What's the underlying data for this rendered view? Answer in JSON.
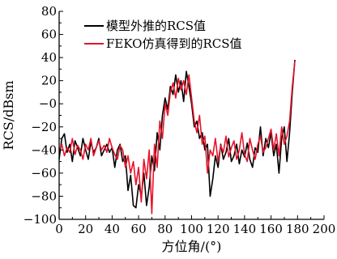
{
  "chart_data": {
    "type": "line",
    "xlabel": "方位角/(°)",
    "ylabel": "RCS/dBsm",
    "xlim": [
      0,
      200
    ],
    "ylim": [
      -100,
      80
    ],
    "xticks": [
      "0",
      "20",
      "40",
      "60",
      "80",
      "100",
      "120",
      "140",
      "160",
      "180",
      "200"
    ],
    "yticks": [
      "80",
      "60",
      "40",
      "20",
      "−0",
      "−20",
      "−40",
      "−60",
      "−80",
      "−100"
    ],
    "grid": false,
    "legend": "top-left",
    "series": [
      {
        "name": "模型外推的RCS值",
        "color": "#000000",
        "x": [
          0,
          2,
          4,
          6,
          8,
          10,
          12,
          14,
          16,
          18,
          20,
          22,
          24,
          26,
          28,
          30,
          32,
          34,
          36,
          38,
          40,
          42,
          44,
          46,
          48,
          50,
          52,
          54,
          56,
          58,
          60,
          62,
          64,
          66,
          68,
          70,
          72,
          74,
          76,
          78,
          80,
          82,
          84,
          86,
          88,
          90,
          92,
          94,
          96,
          98,
          100,
          102,
          104,
          106,
          108,
          110,
          112,
          114,
          116,
          118,
          120,
          122,
          124,
          126,
          128,
          130,
          132,
          134,
          136,
          138,
          140,
          142,
          144,
          146,
          148,
          150,
          152,
          154,
          156,
          158,
          160,
          162,
          164,
          166,
          168,
          170,
          172,
          174,
          176,
          178
        ],
        "values": [
          -48,
          -30,
          -26,
          -42,
          -35,
          -50,
          -32,
          -38,
          -45,
          -30,
          -40,
          -48,
          -33,
          -42,
          -38,
          -30,
          -45,
          -40,
          -35,
          -42,
          -38,
          -55,
          -40,
          -35,
          -50,
          -45,
          -75,
          -62,
          -88,
          -90,
          -70,
          -80,
          -60,
          -88,
          -72,
          -45,
          -58,
          -25,
          -40,
          -10,
          5,
          -5,
          15,
          8,
          25,
          10,
          20,
          2,
          28,
          15,
          0,
          -20,
          -15,
          -30,
          -25,
          -40,
          -35,
          -80,
          -65,
          -45,
          -55,
          -35,
          -48,
          -42,
          -30,
          -50,
          -45,
          -35,
          -52,
          -40,
          -46,
          -34,
          -48,
          -55,
          -38,
          -42,
          -20,
          -45,
          -30,
          -38,
          -25,
          -45,
          -35,
          -60,
          -30,
          -20,
          -50,
          -25,
          10,
          38
        ]
      },
      {
        "name": "FEKO仿真得到的RCS值",
        "color": "#e8132a",
        "x": [
          0,
          2,
          4,
          6,
          8,
          10,
          12,
          14,
          16,
          18,
          20,
          22,
          24,
          26,
          28,
          30,
          32,
          34,
          36,
          38,
          40,
          42,
          44,
          46,
          48,
          50,
          52,
          54,
          56,
          58,
          60,
          62,
          64,
          66,
          68,
          70,
          72,
          74,
          76,
          78,
          80,
          82,
          84,
          86,
          88,
          90,
          92,
          94,
          96,
          98,
          100,
          102,
          104,
          106,
          108,
          110,
          112,
          114,
          116,
          118,
          120,
          122,
          124,
          126,
          128,
          130,
          132,
          134,
          136,
          138,
          140,
          142,
          144,
          146,
          148,
          150,
          152,
          154,
          156,
          158,
          160,
          162,
          164,
          166,
          168,
          170,
          172,
          174,
          176,
          178
        ],
        "values": [
          -40,
          -35,
          -45,
          -38,
          -42,
          -30,
          -44,
          -36,
          -40,
          -48,
          -35,
          -40,
          -30,
          -45,
          -38,
          -32,
          -40,
          -36,
          -42,
          -30,
          -38,
          -44,
          -48,
          -36,
          -40,
          -55,
          -45,
          -60,
          -50,
          -70,
          -55,
          -85,
          -48,
          -65,
          -40,
          -95,
          -35,
          -55,
          -15,
          -30,
          0,
          -10,
          10,
          18,
          5,
          22,
          12,
          20,
          8,
          25,
          5,
          -15,
          -25,
          -10,
          -35,
          -28,
          -60,
          -40,
          -45,
          -30,
          -50,
          -36,
          -42,
          -28,
          -46,
          -38,
          -32,
          -48,
          -40,
          -25,
          -44,
          -50,
          -30,
          -40,
          -48,
          -35,
          -28,
          -42,
          -38,
          -30,
          -22,
          -40,
          -26,
          -45,
          -20,
          -35,
          -28,
          -15,
          15,
          37
        ]
      }
    ]
  }
}
